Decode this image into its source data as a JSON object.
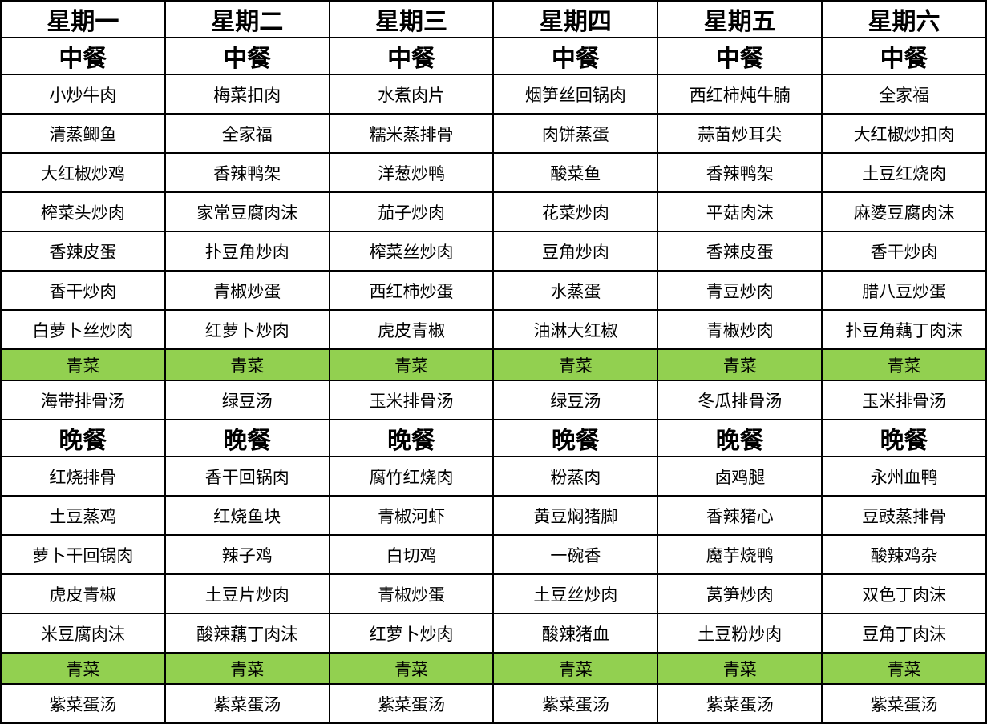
{
  "table": {
    "vegetable_row_color": "#92d050",
    "border_color": "#000000",
    "text_color": "#000000",
    "columns": [
      {
        "day": "星期一",
        "lunch_label": "中餐",
        "lunch": [
          "小炒牛肉",
          "清蒸鲫鱼",
          "大红椒炒鸡",
          "榨菜头炒肉",
          "香辣皮蛋",
          "香干炒肉",
          "白萝卜丝炒肉"
        ],
        "lunch_vegetable": "青菜",
        "lunch_soup": "海带排骨汤",
        "dinner_label": "晚餐",
        "dinner": [
          "红烧排骨",
          "土豆蒸鸡",
          "萝卜干回锅肉",
          "虎皮青椒",
          "米豆腐肉沫"
        ],
        "dinner_vegetable": "青菜",
        "dinner_soup": "紫菜蛋汤"
      },
      {
        "day": "星期二",
        "lunch_label": "中餐",
        "lunch": [
          "梅菜扣肉",
          "全家福",
          "香辣鸭架",
          "家常豆腐肉沫",
          "扑豆角炒肉",
          "青椒炒蛋",
          "红萝卜炒肉"
        ],
        "lunch_vegetable": "青菜",
        "lunch_soup": "绿豆汤",
        "dinner_label": "晚餐",
        "dinner": [
          "香干回锅肉",
          "红烧鱼块",
          "辣子鸡",
          "土豆片炒肉",
          "酸辣藕丁肉沫"
        ],
        "dinner_vegetable": "青菜",
        "dinner_soup": "紫菜蛋汤"
      },
      {
        "day": "星期三",
        "lunch_label": "中餐",
        "lunch": [
          "水煮肉片",
          "糯米蒸排骨",
          "洋葱炒鸭",
          "茄子炒肉",
          "榨菜丝炒肉",
          "西红柿炒蛋",
          "虎皮青椒"
        ],
        "lunch_vegetable": "青菜",
        "lunch_soup": "玉米排骨汤",
        "dinner_label": "晚餐",
        "dinner": [
          "腐竹红烧肉",
          "青椒河虾",
          "白切鸡",
          "青椒炒蛋",
          "红萝卜炒肉"
        ],
        "dinner_vegetable": "青菜",
        "dinner_soup": "紫菜蛋汤"
      },
      {
        "day": "星期四",
        "lunch_label": "中餐",
        "lunch": [
          "烟笋丝回锅肉",
          "肉饼蒸蛋",
          "酸菜鱼",
          "花菜炒肉",
          "豆角炒肉",
          "水蒸蛋",
          "油淋大红椒"
        ],
        "lunch_vegetable": "青菜",
        "lunch_soup": "绿豆汤",
        "dinner_label": "晚餐",
        "dinner": [
          "粉蒸肉",
          "黄豆焖猪脚",
          "一碗香",
          "土豆丝炒肉",
          "酸辣猪血"
        ],
        "dinner_vegetable": "青菜",
        "dinner_soup": "紫菜蛋汤"
      },
      {
        "day": "星期五",
        "lunch_label": "中餐",
        "lunch": [
          "西红柿炖牛腩",
          "蒜苗炒耳尖",
          "香辣鸭架",
          "平菇肉沫",
          "香辣皮蛋",
          "青豆炒肉",
          "青椒炒肉"
        ],
        "lunch_vegetable": "青菜",
        "lunch_soup": "冬瓜排骨汤",
        "dinner_label": "晚餐",
        "dinner": [
          "卤鸡腿",
          "香辣猪心",
          "魔芋烧鸭",
          "莴笋炒肉",
          "土豆粉炒肉"
        ],
        "dinner_vegetable": "青菜",
        "dinner_soup": "紫菜蛋汤"
      },
      {
        "day": "星期六",
        "lunch_label": "中餐",
        "lunch": [
          "全家福",
          "大红椒炒扣肉",
          "土豆红烧肉",
          "麻婆豆腐肉沫",
          "香干炒肉",
          "腊八豆炒蛋",
          "扑豆角藕丁肉沫"
        ],
        "lunch_vegetable": "青菜",
        "lunch_soup": "玉米排骨汤",
        "dinner_label": "晚餐",
        "dinner": [
          "永州血鸭",
          "豆豉蒸排骨",
          "酸辣鸡杂",
          "双色丁肉沫",
          "豆角丁肉沫"
        ],
        "dinner_vegetable": "青菜",
        "dinner_soup": "紫菜蛋汤"
      }
    ]
  }
}
